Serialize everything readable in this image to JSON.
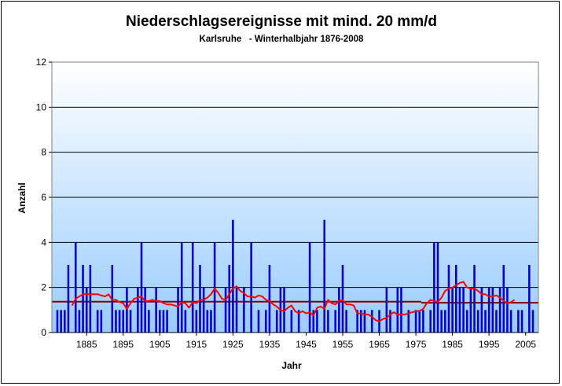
{
  "chart_data": {
    "type": "bar",
    "title": "Niederschlagsereignisse mit mind. 20 mm/d",
    "subtitle": "Karlsruhe   - Winterhalbjahr 1876-2008",
    "xlabel": "Jahr",
    "ylabel": "Anzahl",
    "ylim": [
      0,
      12
    ],
    "yticks": [
      0,
      2,
      4,
      6,
      8,
      10,
      12
    ],
    "xlim": [
      1876,
      2008
    ],
    "xticks": [
      1885,
      1895,
      1905,
      1915,
      1925,
      1935,
      1945,
      1955,
      1965,
      1975,
      1985,
      1995,
      2005
    ],
    "grid": true,
    "legend": "none",
    "colors": {
      "bars": "#0000cc",
      "moving_average": "#ff0000",
      "mean_line": "#800000",
      "background_top": "#ffffff",
      "background_bottom": "#99ccff"
    },
    "series": [
      {
        "type": "bar",
        "x_start": 1876,
        "values": [
          0,
          1,
          1,
          1,
          3,
          0,
          4,
          1,
          3,
          2,
          3,
          0,
          1,
          1,
          0,
          0,
          3,
          1,
          1,
          1,
          2,
          1,
          0,
          2,
          4,
          2,
          1,
          0,
          2,
          1,
          1,
          1,
          0,
          0,
          2,
          4,
          1,
          0,
          4,
          1,
          3,
          2,
          1,
          1,
          4,
          0,
          0,
          2,
          3,
          5,
          2,
          0,
          2,
          0,
          4,
          0,
          1,
          0,
          1,
          3,
          0,
          1,
          2,
          2,
          0,
          1,
          0,
          1,
          0,
          0,
          4,
          1,
          1,
          0,
          5,
          1,
          0,
          1,
          2,
          3,
          1,
          0,
          0,
          1,
          1,
          1,
          0,
          1,
          0,
          1,
          0,
          2,
          1,
          0,
          2,
          2,
          0,
          1,
          0,
          1,
          1,
          1,
          0,
          1,
          4,
          4,
          1,
          1,
          3,
          2,
          3,
          2,
          2,
          1,
          2,
          3,
          1,
          2,
          1,
          2,
          2,
          1,
          2,
          3,
          2,
          1,
          0,
          1,
          1,
          0,
          3,
          1,
          0
        ]
      },
      {
        "type": "line",
        "x_start": 1876,
        "values": [
          null,
          null,
          null,
          null,
          null,
          1.2,
          1.5,
          1.6,
          1.7,
          1.7,
          1.7,
          1.7,
          1.7,
          1.65,
          1.6,
          1.7,
          1.45,
          1.45,
          1.35,
          1.3,
          1.05,
          1.3,
          1.5,
          1.55,
          1.6,
          1.4,
          1.4,
          1.45,
          1.4,
          1.4,
          1.3,
          1.25,
          1.25,
          1.2,
          1.15,
          1.35,
          1.3,
          1.1,
          1.35,
          1.3,
          1.45,
          1.45,
          1.55,
          1.7,
          1.95,
          1.75,
          1.5,
          1.45,
          1.7,
          1.95,
          2.05,
          1.85,
          1.75,
          1.6,
          1.6,
          1.55,
          1.65,
          1.6,
          1.45,
          1.4,
          1.25,
          1.15,
          1.0,
          0.95,
          1.1,
          1.2,
          0.95,
          0.85,
          0.95,
          0.85,
          0.9,
          0.75,
          1.1,
          1.15,
          1.05,
          1.45,
          1.3,
          1.25,
          1.4,
          1.45,
          1.25,
          1.25,
          1.2,
          0.85,
          0.85,
          0.8,
          0.8,
          0.7,
          0.55,
          0.5,
          0.6,
          0.65,
          0.8,
          0.9,
          0.8,
          0.8,
          0.8,
          0.85,
          0.9,
          0.95,
          0.95,
          1.05,
          1.3,
          1.45,
          1.4,
          1.35,
          1.55,
          1.85,
          1.95,
          2.0,
          2.1,
          2.2,
          2.25,
          2.0,
          1.95,
          1.95,
          1.85,
          1.7,
          1.7,
          1.6,
          1.6,
          1.65,
          1.55,
          1.4,
          1.3,
          1.35,
          1.45,
          null,
          null,
          null,
          null,
          null,
          null
        ]
      },
      {
        "type": "line",
        "name_hidden": true,
        "segments": [
          {
            "x": [
              1876,
              1976
            ],
            "y": [
              1.37,
              1.37
            ]
          },
          {
            "x": [
              1977,
              2008
            ],
            "y": [
              1.32,
              1.32
            ]
          }
        ]
      }
    ]
  }
}
